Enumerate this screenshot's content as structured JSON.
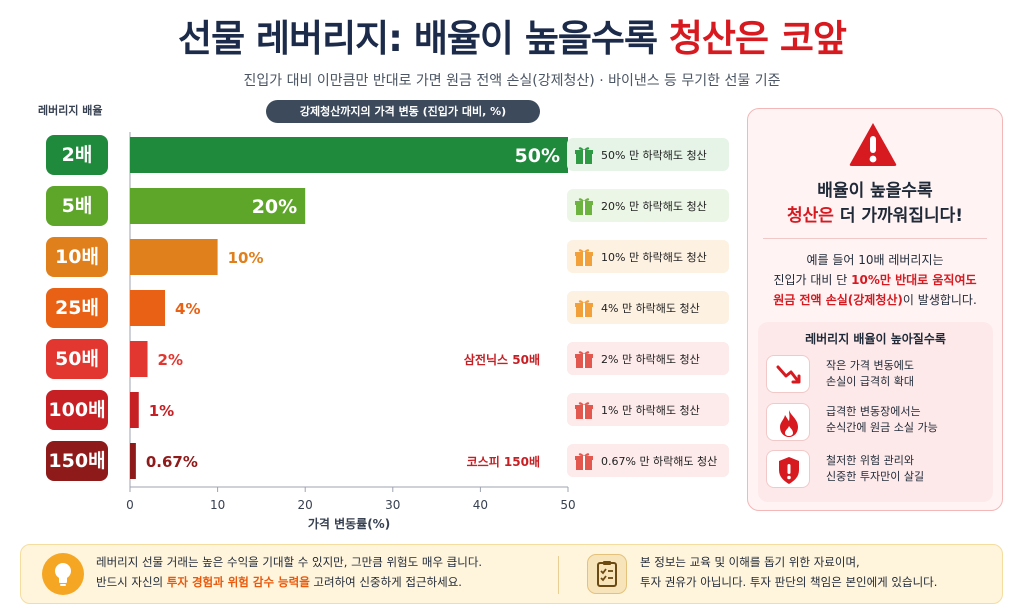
{
  "title": {
    "main": "선물 레버리지: 배율이 높을수록 ",
    "accent": "청산은 코앞"
  },
  "subtitle": "진입가 대비 이만큼만 반대로 가면 원금 전액 손실(강제청산) · 바이낸스 등 무기한 선물 기준",
  "leverage_header": "레버리지 배율",
  "chart_header": "강제청산까지의 가격 변동 (진입가 대비, %)",
  "chart_data": {
    "type": "bar",
    "orientation": "horizontal",
    "categories": [
      "2배",
      "5배",
      "10배",
      "25배",
      "50배",
      "100배",
      "150배"
    ],
    "values": [
      50,
      20,
      10,
      4,
      2,
      1,
      0.67
    ],
    "value_labels": [
      "50%",
      "20%",
      "10%",
      "4%",
      "2%",
      "1%",
      "0.67%"
    ],
    "xlabel": "가격 변동률(%)",
    "xlim": [
      0,
      50
    ],
    "xticks": [
      "0",
      "10",
      "20",
      "30",
      "40",
      "50"
    ],
    "grid": false,
    "colors": [
      "#1f8a3c",
      "#5ea62a",
      "#e0801c",
      "#e86114",
      "#e23730",
      "#c62025",
      "#8e1a1a"
    ],
    "annotations": [
      {
        "category": "50배",
        "text": "삼전닉스 50배"
      },
      {
        "category": "150배",
        "text": "코스피 150배"
      }
    ]
  },
  "liquidation_notes": [
    {
      "text": "50% 만 하락해도 청산",
      "bg": "#e6f4e7",
      "icon": "gift-icon",
      "icon_color": "#2e9a44"
    },
    {
      "text": "20% 만 하락해도 청산",
      "bg": "#ecf6e6",
      "icon": "gift-icon",
      "icon_color": "#6cb33f"
    },
    {
      "text": "10% 만 하락해도 청산",
      "bg": "#fdf1e2",
      "icon": "gift-icon",
      "icon_color": "#f2a03a"
    },
    {
      "text": "4% 만 하락해도 청산",
      "bg": "#fdf1e2",
      "icon": "gift-icon",
      "icon_color": "#f2a03a"
    },
    {
      "text": "2% 만 하락해도 청산",
      "bg": "#fdeaea",
      "icon": "gift-icon",
      "icon_color": "#e2584f"
    },
    {
      "text": "1% 만 하락해도 청산",
      "bg": "#fdeaea",
      "icon": "gift-icon",
      "icon_color": "#e2584f"
    },
    {
      "text": "0.67% 만 하락해도 청산",
      "bg": "#fdeaea",
      "icon": "gift-icon",
      "icon_color": "#e2584f"
    }
  ],
  "warning_panel": {
    "icon": "warning-triangle-icon",
    "title_line1": "배율이 높을수록",
    "title_line2_red": "청산은",
    "title_line2_rest": " 더 가까워집니다!",
    "example_line1": "예를 들어 10배 레버리지는",
    "example_line2_pre": "진입가 대비 단 ",
    "example_line2_red": "10%만 반대로 움직여도",
    "example_line3_red": "원금 전액 손실(강제청산)",
    "example_line3_post": "이 발생합니다.",
    "list_title": "레버리지 배율이 높아질수록",
    "items": [
      {
        "icon": "trend-down-icon",
        "line1": "작은 가격 변동에도",
        "line2": "손실이 급격히 확대"
      },
      {
        "icon": "fire-icon",
        "line1": "급격한 변동장에서는",
        "line2": "순식간에 원금 소실 가능"
      },
      {
        "icon": "shield-icon",
        "line1": "철저한 위험 관리와",
        "line2": "신중한 투자만이 살길"
      }
    ]
  },
  "footer": {
    "left_icon": "lightbulb-icon",
    "left_line1": "레버리지 선물 거래는 높은 수익을 기대할 수 있지만, 그만큼 위험도 매우 큽니다.",
    "left_line2_pre": "반드시 자신의 ",
    "left_line2_accent": "투자 경험과 위험 감수 능력을",
    "left_line2_post": " 고려하여 신중하게 접근하세요.",
    "right_icon": "clipboard-icon",
    "right_line1": "본 정보는 교육 및 이해를 돕기 위한 자료이며,",
    "right_line2": "투자 권유가 아닙니다. 투자 판단의 책임은 본인에게 있습니다."
  }
}
